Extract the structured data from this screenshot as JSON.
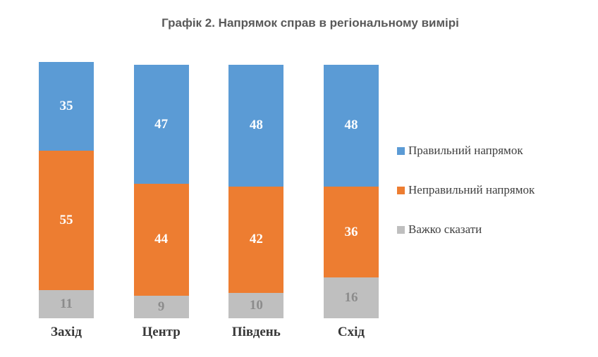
{
  "title": "Графік 2. Напрямок справ в регіональному вимірі",
  "chart_data": {
    "type": "bar",
    "stacked": true,
    "orientation": "vertical",
    "title": "Графік 2. Напрямок справ в регіональному вимірі",
    "categories": [
      "Захід",
      "Центр",
      "Південь",
      "Схід"
    ],
    "series": [
      {
        "name": "Правильний напрямок",
        "values": [
          35,
          47,
          48,
          48
        ],
        "color": "#5B9BD5",
        "label_color": "#FFFFFF"
      },
      {
        "name": "Неправильний напрямок",
        "values": [
          55,
          44,
          42,
          36
        ],
        "color": "#ED7D31",
        "label_color": "#FFFFFF"
      },
      {
        "name": "Важко сказати",
        "values": [
          11,
          9,
          10,
          16
        ],
        "color": "#BFBFBF",
        "label_color": "#8C8C8C"
      }
    ],
    "totals": [
      101,
      100,
      100,
      100
    ],
    "ylim": [
      0,
      101
    ],
    "grid": false,
    "axes_visible": false,
    "value_labels": true,
    "legend_position": "right",
    "title_color": "#595959",
    "category_label_color": "#383838",
    "legend_text_color": "#3F3F3F"
  }
}
